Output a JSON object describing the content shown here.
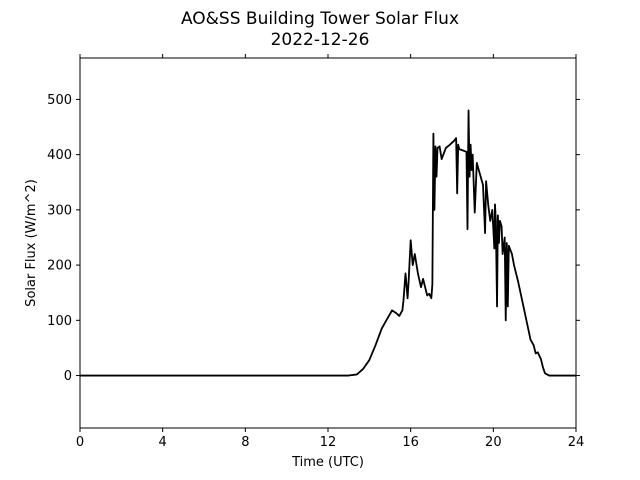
{
  "chart_data": {
    "type": "line",
    "title": "AO&SS Building Tower Solar Flux",
    "subtitle": "2022-12-26",
    "xlabel": "Time (UTC)",
    "ylabel": "Solar Flux (W/m^2)",
    "xlim": [
      0,
      24
    ],
    "ylim": [
      -95,
      575
    ],
    "xticks": [
      0,
      4,
      8,
      12,
      16,
      20,
      24
    ],
    "yticks": [
      0,
      100,
      200,
      300,
      400,
      500
    ],
    "grid": false,
    "legend": "none",
    "series": [
      {
        "color": "#000000",
        "x": [
          0,
          13.0,
          13.4,
          13.7,
          14.0,
          14.3,
          14.6,
          14.9,
          15.1,
          15.3,
          15.45,
          15.6,
          15.65,
          15.75,
          15.85,
          15.9,
          16.0,
          16.1,
          16.2,
          16.35,
          16.5,
          16.6,
          16.7,
          16.8,
          16.9,
          17.0,
          17.05,
          17.1,
          17.15,
          17.2,
          17.25,
          17.3,
          17.4,
          17.5,
          17.7,
          17.9,
          18.1,
          18.2,
          18.25,
          18.3,
          18.35,
          18.5,
          18.7,
          18.75,
          18.8,
          18.85,
          18.9,
          18.95,
          19.0,
          19.1,
          19.2,
          19.25,
          19.35,
          19.5,
          19.6,
          19.65,
          19.75,
          19.85,
          19.95,
          20.05,
          20.08,
          20.12,
          20.18,
          20.22,
          20.27,
          20.32,
          20.4,
          20.45,
          20.55,
          20.6,
          20.65,
          20.7,
          20.75,
          20.8,
          20.9,
          21.0,
          21.2,
          21.4,
          21.6,
          21.8,
          21.95,
          22.05,
          22.15,
          22.3,
          22.4,
          22.5,
          22.6,
          22.7,
          22.8,
          24.0
        ],
        "y": [
          0,
          0,
          2,
          12,
          28,
          55,
          85,
          105,
          118,
          113,
          108,
          118,
          135,
          185,
          140,
          170,
          245,
          200,
          220,
          185,
          160,
          175,
          160,
          145,
          148,
          140,
          165,
          438,
          300,
          415,
          360,
          412,
          415,
          392,
          412,
          418,
          425,
          430,
          330,
          418,
          410,
          408,
          405,
          265,
          480,
          360,
          418,
          372,
          400,
          295,
          385,
          378,
          365,
          345,
          258,
          352,
          310,
          280,
          300,
          230,
          310,
          280,
          125,
          290,
          240,
          280,
          270,
          220,
          250,
          100,
          240,
          125,
          235,
          230,
          220,
          200,
          170,
          135,
          100,
          65,
          55,
          40,
          42,
          30,
          15,
          4,
          2,
          0,
          0,
          0
        ]
      }
    ]
  }
}
